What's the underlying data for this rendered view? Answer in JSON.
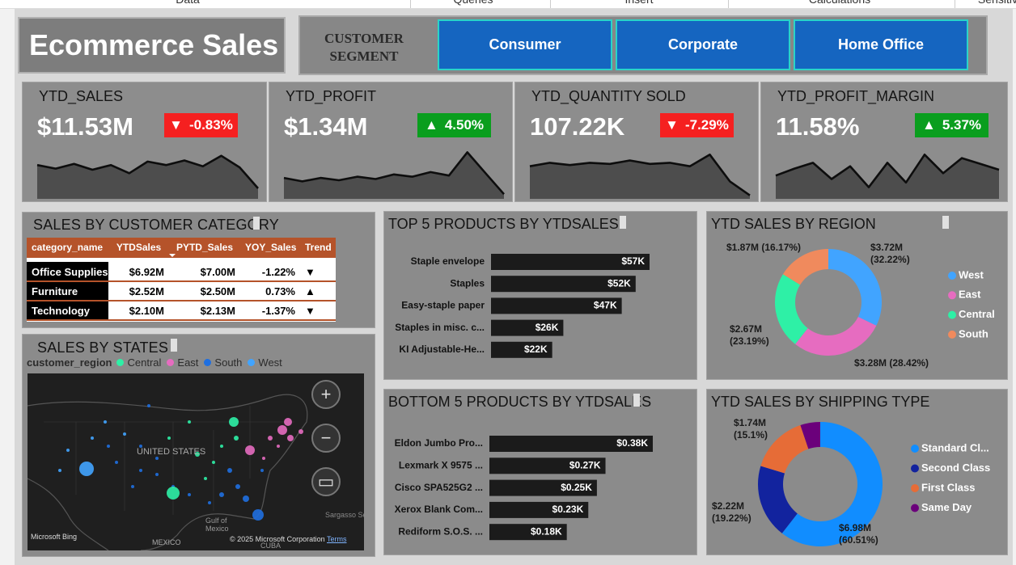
{
  "menu": [
    "Data",
    "Queries",
    "Insert",
    "Calculations",
    "Sensitivi"
  ],
  "header": {
    "title": "Ecommerce Sales",
    "segment_label": "CUSTOMER SEGMENT",
    "segments": [
      "Consumer",
      "Corporate",
      "Home Office"
    ]
  },
  "kpis": [
    {
      "name": "YTD_SALES",
      "value": "$11.53M",
      "arrow": "▼",
      "change": "-0.83%",
      "badge_color": "#f52020",
      "sparkline": [
        58,
        52,
        60,
        50,
        58,
        44,
        64,
        58,
        66,
        56,
        74,
        54,
        18
      ]
    },
    {
      "name": "YTD_PROFIT",
      "value": "$1.34M",
      "arrow": "▲",
      "change": "4.50%",
      "badge_color": "#0a9e1e",
      "sparkline": [
        36,
        30,
        36,
        32,
        38,
        34,
        42,
        38,
        46,
        40,
        80,
        44,
        8
      ]
    },
    {
      "name": "YTD_QUANTITY SOLD",
      "value": "107.22K",
      "arrow": "▼",
      "change": "-7.29%",
      "badge_color": "#f52020",
      "sparkline": [
        56,
        62,
        58,
        62,
        60,
        66,
        60,
        62,
        56,
        76,
        30,
        6
      ]
    },
    {
      "name": "YTD_PROFIT_MARGIN",
      "value": "11.58%",
      "arrow": "▲",
      "change": "5.37%",
      "badge_color": "#0a9e1e",
      "sparkline": [
        40,
        52,
        62,
        34,
        56,
        20,
        62,
        28,
        76,
        44,
        70,
        60,
        50
      ]
    }
  ],
  "table": {
    "title": "SALES BY CUSTOMER CATEGORY",
    "columns": [
      "category_name",
      "YTDSales",
      "PYTD_Sales",
      "YOY_Sales",
      "Trend"
    ],
    "rows": [
      [
        "Office Supplies",
        "$6.92M",
        "$7.00M",
        "-1.22%",
        "▼"
      ],
      [
        "Furniture",
        "$2.52M",
        "$2.50M",
        "0.73%",
        "▲"
      ],
      [
        "Technology",
        "$2.10M",
        "$2.13M",
        "-1.37%",
        "▼"
      ]
    ]
  },
  "map": {
    "title": "SALES BY STATES",
    "legend_title": "customer_region",
    "legend": [
      {
        "name": "Central",
        "color": "#2ef0a6"
      },
      {
        "name": "East",
        "color": "#e66cc0"
      },
      {
        "name": "South",
        "color": "#1f6fe0"
      },
      {
        "name": "West",
        "color": "#41a4ff"
      }
    ],
    "labels": [
      "UNITED STATES",
      "Gulf of Mexico",
      "MEXICO",
      "CUBA",
      "Sargasso Sea",
      "Microsoft Bing",
      "© 2025 Microsoft Corporation",
      "Terms"
    ]
  },
  "chart_data": [
    {
      "type": "hbar",
      "title": "TOP 5 PRODUCTS BY YTDSALES",
      "categories": [
        "Staple envelope",
        "Staples",
        "Easy-staple paper",
        "Staples in misc. c...",
        "KI Adjustable-He..."
      ],
      "values": [
        57000,
        52000,
        47000,
        26000,
        22000
      ],
      "value_labels": [
        "$57K",
        "$52K",
        "$47K",
        "$26K",
        "$22K"
      ],
      "color": "#1b1b1b"
    },
    {
      "type": "hbar",
      "title": "BOTTOM 5 PRODUCTS BY YTDSALES",
      "categories": [
        "Eldon Jumbo Pro...",
        "Lexmark X 9575 ...",
        "Cisco SPA525G2 ...",
        "Xerox Blank Com...",
        "Rediform S.O.S. ..."
      ],
      "values": [
        380,
        270,
        250,
        230,
        180
      ],
      "value_labels": [
        "$0.38K",
        "$0.27K",
        "$0.25K",
        "$0.23K",
        "$0.18K"
      ],
      "color": "#1b1b1b"
    },
    {
      "type": "donut",
      "title": "YTD SALES BY REGION",
      "categories": [
        "West",
        "East",
        "Central",
        "South"
      ],
      "values": [
        32.22,
        28.42,
        23.19,
        16.17
      ],
      "value_labels": [
        "$3.72M (32.22%)",
        "$3.28M (28.42%)",
        "$2.67M (23.19%)",
        "$1.87M (16.17%)"
      ],
      "colors": [
        "#41a4ff",
        "#e66cc0",
        "#2ef0a6",
        "#f08a5d"
      ]
    },
    {
      "type": "donut",
      "title": "YTD SALES BY SHIPPING TYPE",
      "categories": [
        "Standard Cl...",
        "Second Class",
        "First Class",
        "Same Day"
      ],
      "values": [
        60.51,
        19.22,
        15.1,
        5.17
      ],
      "value_labels": [
        "$6.98M (60.51%)",
        "$2.22M (19.22%)",
        "$1.74M (15.1%)",
        null
      ],
      "colors": [
        "#118dff",
        "#12239e",
        "#e66c37",
        "#6b007b"
      ]
    }
  ]
}
